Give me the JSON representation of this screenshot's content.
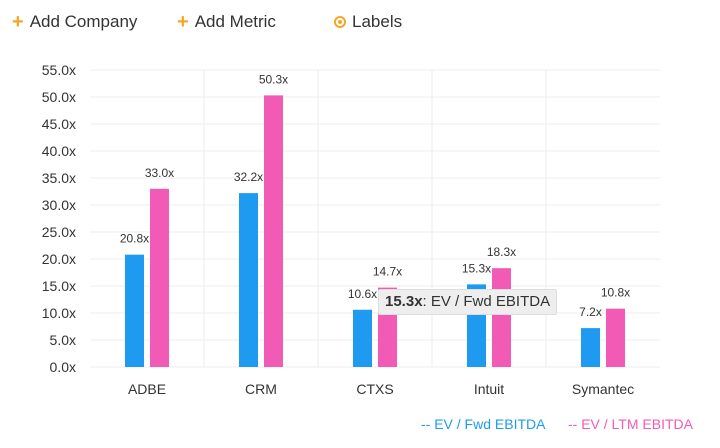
{
  "toolbar": {
    "add_company": "Add Company",
    "add_metric": "Add Metric",
    "labels": "Labels"
  },
  "tooltip": {
    "value": "15.3x",
    "text": ": EV / Fwd EBITDA"
  },
  "legend": {
    "fwd": "-- EV / Fwd EBITDA",
    "ltm": "-- EV / LTM EBITDA"
  },
  "colors": {
    "fwd": "#1e9bf0",
    "ltm": "#f25bb5",
    "accent": "#f5a623"
  },
  "icons": {
    "add_company": "plus-icon",
    "add_metric": "plus-icon",
    "labels": "target-icon"
  },
  "chart_data": {
    "type": "bar",
    "categories": [
      "ADBE",
      "CRM",
      "CTXS",
      "Intuit",
      "Symantec"
    ],
    "series": [
      {
        "name": "EV / Fwd EBITDA",
        "values": [
          20.8,
          32.2,
          10.6,
          15.3,
          7.2
        ],
        "labels": [
          "20.8x",
          "32.2x",
          "10.6x",
          "15.3x",
          "7.2x"
        ]
      },
      {
        "name": "EV / LTM EBITDA",
        "values": [
          33.0,
          50.3,
          14.7,
          18.3,
          10.8
        ],
        "labels": [
          "33.0x",
          "50.3x",
          "14.7x",
          "18.3x",
          "10.8x"
        ]
      }
    ],
    "yticks": [
      "0.0x",
      "5.0x",
      "10.0x",
      "15.0x",
      "20.0x",
      "25.0x",
      "30.0x",
      "35.0x",
      "40.0x",
      "45.0x",
      "50.0x",
      "55.0x"
    ],
    "ylim": [
      0,
      55
    ],
    "grid": true,
    "legend_position": "bottom-right",
    "title": "",
    "xlabel": "",
    "ylabel": ""
  }
}
